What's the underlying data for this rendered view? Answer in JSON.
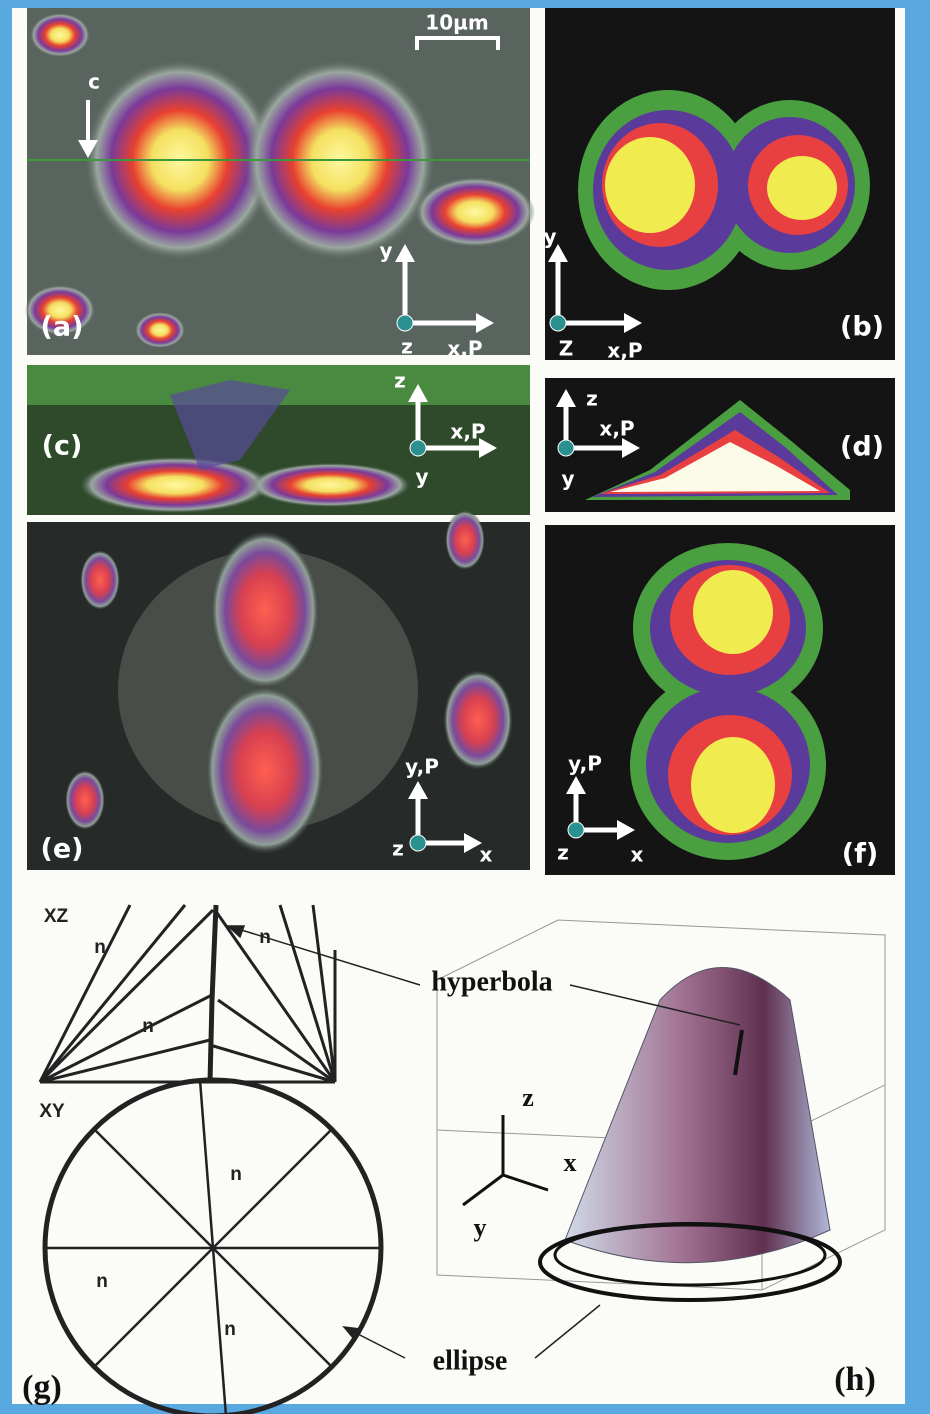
{
  "scale_bar": "10µm",
  "panels": [
    {
      "label": "(a)",
      "axes": [
        "y",
        "z",
        "x,P"
      ],
      "marker": "c"
    },
    {
      "label": "(b)",
      "axes": [
        "y",
        "Z",
        "x,P"
      ]
    },
    {
      "label": "(c)",
      "axes": [
        "z",
        "x,P",
        "y"
      ]
    },
    {
      "label": "(d)",
      "axes": [
        "z",
        "x,P",
        "y"
      ]
    },
    {
      "label": "(e)",
      "axes": [
        "y,P",
        "z",
        "x"
      ]
    },
    {
      "label": "(f)",
      "axes": [
        "y,P",
        "z",
        "x"
      ]
    }
  ],
  "g": {
    "label": "(g)",
    "xz": "XZ",
    "xy": "XY",
    "n_labels": [
      "n",
      "n",
      "n",
      "n",
      "n",
      "n"
    ]
  },
  "h": {
    "label": "(h)",
    "axes": [
      "z",
      "x",
      "y"
    ]
  },
  "annotations": {
    "hyperbola": "hyperbola",
    "ellipse": "ellipse"
  }
}
